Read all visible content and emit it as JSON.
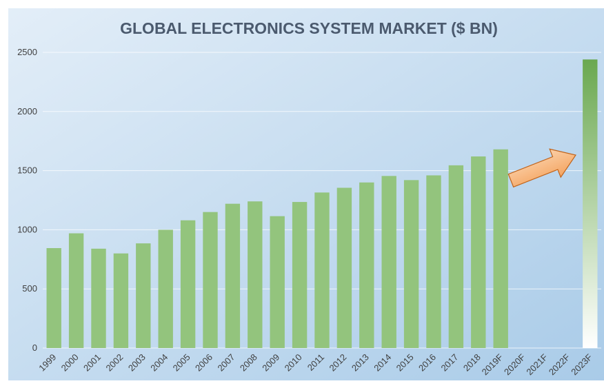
{
  "chart_data": {
    "type": "bar",
    "title": "GLOBAL ELECTRONICS SYSTEM MARKET ($ BN)",
    "xlabel": "",
    "ylabel": "",
    "ylim": [
      0,
      2500
    ],
    "yticks": [
      0,
      500,
      1000,
      1500,
      2000,
      2500
    ],
    "grid": true,
    "legend": "none",
    "categories": [
      "1999",
      "2000",
      "2001",
      "2002",
      "2003",
      "2004",
      "2005",
      "2006",
      "2007",
      "2008",
      "2009",
      "2010",
      "2011",
      "2012",
      "2013",
      "2014",
      "2015",
      "2016",
      "2017",
      "2018",
      "2019F",
      "2020F",
      "2021F",
      "2022F",
      "2023F"
    ],
    "values": [
      845,
      970,
      840,
      800,
      885,
      1000,
      1080,
      1150,
      1220,
      1240,
      1115,
      1235,
      1315,
      1355,
      1400,
      1455,
      1420,
      1460,
      1545,
      1620,
      1680,
      null,
      null,
      null,
      2440
    ],
    "colors": {
      "bar": "#93c47d",
      "forecast_bar_top": "#6aa84f",
      "forecast_bar_bottom": "#ffffff",
      "arrow": "#f4a460",
      "background_left": "#e3eef8",
      "background_right": "#a9cbe8"
    },
    "annotations": [
      {
        "type": "arrow-icon",
        "direction": "up-right",
        "meaning": "growth toward 2023F"
      }
    ]
  }
}
